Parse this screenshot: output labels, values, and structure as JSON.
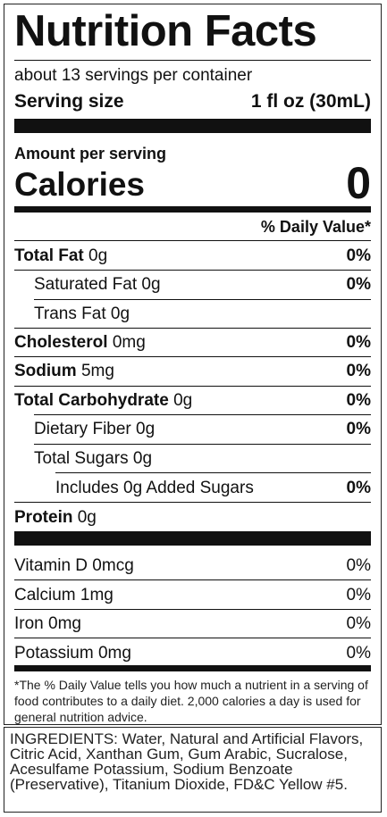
{
  "label": {
    "title": "Nutrition Facts",
    "servings_per_container": "about 13 servings per container",
    "serving_size_label": "Serving size",
    "serving_size_value": "1 fl oz (30mL)",
    "amount_per_serving": "Amount per serving",
    "calories_label": "Calories",
    "calories_value": "0",
    "daily_value_header": "% Daily Value*",
    "nutrients": [
      {
        "name": "Total Fat",
        "amount": "0g",
        "dv": "0%"
      },
      {
        "name": "Saturated Fat",
        "amount": "0g",
        "dv": "0%"
      },
      {
        "name": "Trans Fat",
        "amount": "0g",
        "dv": ""
      },
      {
        "name": "Cholesterol",
        "amount": "0mg",
        "dv": "0%"
      },
      {
        "name": "Sodium",
        "amount": "5mg",
        "dv": "0%"
      },
      {
        "name": "Total Carbohydrate",
        "amount": "0g",
        "dv": "0%"
      },
      {
        "name": "Dietary Fiber",
        "amount": "0g",
        "dv": "0%"
      },
      {
        "name": "Total Sugars",
        "amount": "0g",
        "dv": ""
      },
      {
        "name": "Includes 0g Added Sugars",
        "amount": "",
        "dv": "0%"
      },
      {
        "name": "Protein",
        "amount": "0g",
        "dv": ""
      }
    ],
    "vitamins": [
      {
        "name": "Vitamin D",
        "amount": "0mcg",
        "dv": "0%"
      },
      {
        "name": "Calcium",
        "amount": "1mg",
        "dv": "0%"
      },
      {
        "name": "Iron",
        "amount": "0mg",
        "dv": "0%"
      },
      {
        "name": "Potassium",
        "amount": "0mg",
        "dv": "0%"
      }
    ],
    "footnote": "*The % Daily Value tells you how much a nutrient in a serving of food contributes to a daily diet. 2,000 calories a day is used for general nutrition advice."
  },
  "ingredients": "INGREDIENTS: Water, Natural and Artificial Flavors, Citric Acid, Xanthan Gum, Gum Arabic, Sucralose, Acesulfame Potassium, Sodium Benzoate (Preservative), Titanium Dioxide, FD&C Yellow #5."
}
